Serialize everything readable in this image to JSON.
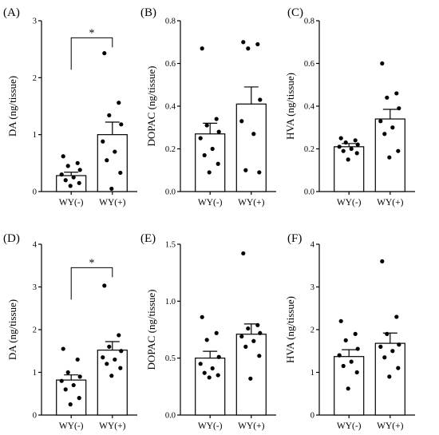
{
  "chart_data": [
    {
      "type": "bar",
      "panel": "(A)",
      "ylabel": "DA (ng/tissue)",
      "ylim": [
        0,
        3
      ],
      "yticks": [
        0,
        1,
        2,
        3
      ],
      "ytick_labels": [
        "0",
        "1",
        "2",
        "3"
      ],
      "categories": [
        "WY(-)",
        "WY(+)"
      ],
      "values": [
        0.28,
        1.0
      ],
      "errors": [
        0.06,
        0.22
      ],
      "points": [
        [
          0.62,
          0.5,
          0.45,
          0.38,
          0.3,
          0.25,
          0.2,
          0.15,
          0.1
        ],
        [
          2.43,
          1.56,
          1.34,
          1.18,
          0.88,
          0.7,
          0.55,
          0.33,
          0.05
        ]
      ],
      "significance": {
        "label": "*",
        "from": 0,
        "to": 1,
        "y": 2.7
      }
    },
    {
      "type": "bar",
      "panel": "(B)",
      "ylabel": "DOPAC (ng/tissue)",
      "ylim": [
        0,
        0.8
      ],
      "yticks": [
        0,
        0.2,
        0.4,
        0.6,
        0.8
      ],
      "ytick_labels": [
        "0.0",
        "0.2",
        "0.4",
        "0.6",
        "0.8"
      ],
      "categories": [
        "WY(-)",
        "WY(+)"
      ],
      "values": [
        0.27,
        0.41
      ],
      "errors": [
        0.05,
        0.08
      ],
      "points": [
        [
          0.67,
          0.34,
          0.31,
          0.28,
          0.25,
          0.2,
          0.17,
          0.13,
          0.09
        ],
        [
          0.7,
          0.69,
          0.67,
          0.43,
          0.33,
          0.27,
          0.1,
          0.09
        ]
      ]
    },
    {
      "type": "bar",
      "panel": "(C)",
      "ylabel": "HVA (ng/tissue)",
      "ylim": [
        0,
        0.8
      ],
      "yticks": [
        0,
        0.2,
        0.4,
        0.6,
        0.8
      ],
      "ytick_labels": [
        "0.0",
        "0.2",
        "0.4",
        "0.6",
        "0.8"
      ],
      "categories": [
        "WY(-)",
        "WY(+)"
      ],
      "values": [
        0.21,
        0.34
      ],
      "errors": [
        0.015,
        0.045
      ],
      "points": [
        [
          0.25,
          0.24,
          0.23,
          0.22,
          0.21,
          0.2,
          0.19,
          0.18,
          0.15
        ],
        [
          0.6,
          0.46,
          0.44,
          0.39,
          0.33,
          0.3,
          0.27,
          0.19,
          0.16
        ]
      ]
    },
    {
      "type": "bar",
      "panel": "(D)",
      "ylabel": "DA (ng/tissue)",
      "ylim": [
        0,
        4
      ],
      "yticks": [
        0,
        1,
        2,
        3,
        4
      ],
      "ytick_labels": [
        "0",
        "1",
        "2",
        "3",
        "4"
      ],
      "categories": [
        "WY(-)",
        "WY(+)"
      ],
      "values": [
        0.82,
        1.52
      ],
      "errors": [
        0.12,
        0.2
      ],
      "points": [
        [
          1.55,
          1.3,
          1.0,
          0.9,
          0.8,
          0.7,
          0.6,
          0.4,
          0.25
        ],
        [
          3.03,
          1.87,
          1.6,
          1.5,
          1.35,
          1.3,
          1.2,
          1.1,
          0.92
        ]
      ],
      "significance": {
        "label": "*",
        "from": 0,
        "to": 1,
        "y": 3.45
      }
    },
    {
      "type": "bar",
      "panel": "(E)",
      "ylabel": "DOPAC (ng/tissue)",
      "ylim": [
        0,
        1.5
      ],
      "yticks": [
        0,
        0.5,
        1.0,
        1.5
      ],
      "ytick_labels": [
        "0.0",
        "0.5",
        "1.0",
        "1.5"
      ],
      "categories": [
        "WY(-)",
        "WY(+)"
      ],
      "values": [
        0.5,
        0.71
      ],
      "errors": [
        0.06,
        0.09
      ],
      "points": [
        [
          0.86,
          0.72,
          0.66,
          0.51,
          0.45,
          0.41,
          0.37,
          0.35,
          0.33
        ],
        [
          1.42,
          0.79,
          0.76,
          0.72,
          0.69,
          0.65,
          0.6,
          0.52,
          0.32
        ]
      ]
    },
    {
      "type": "bar",
      "panel": "(F)",
      "ylabel": "HVA (ng/tissue)",
      "ylim": [
        0,
        4
      ],
      "yticks": [
        0,
        1,
        2,
        3,
        4
      ],
      "ytick_labels": [
        "0",
        "1",
        "2",
        "3",
        "4"
      ],
      "categories": [
        "WY(-)",
        "WY(+)"
      ],
      "values": [
        1.37,
        1.68
      ],
      "errors": [
        0.16,
        0.24
      ],
      "points": [
        [
          2.2,
          1.9,
          1.75,
          1.55,
          1.4,
          1.25,
          1.15,
          1.0,
          0.62
        ],
        [
          3.6,
          2.3,
          1.9,
          1.65,
          1.6,
          1.5,
          1.35,
          1.1,
          0.9
        ]
      ]
    }
  ]
}
